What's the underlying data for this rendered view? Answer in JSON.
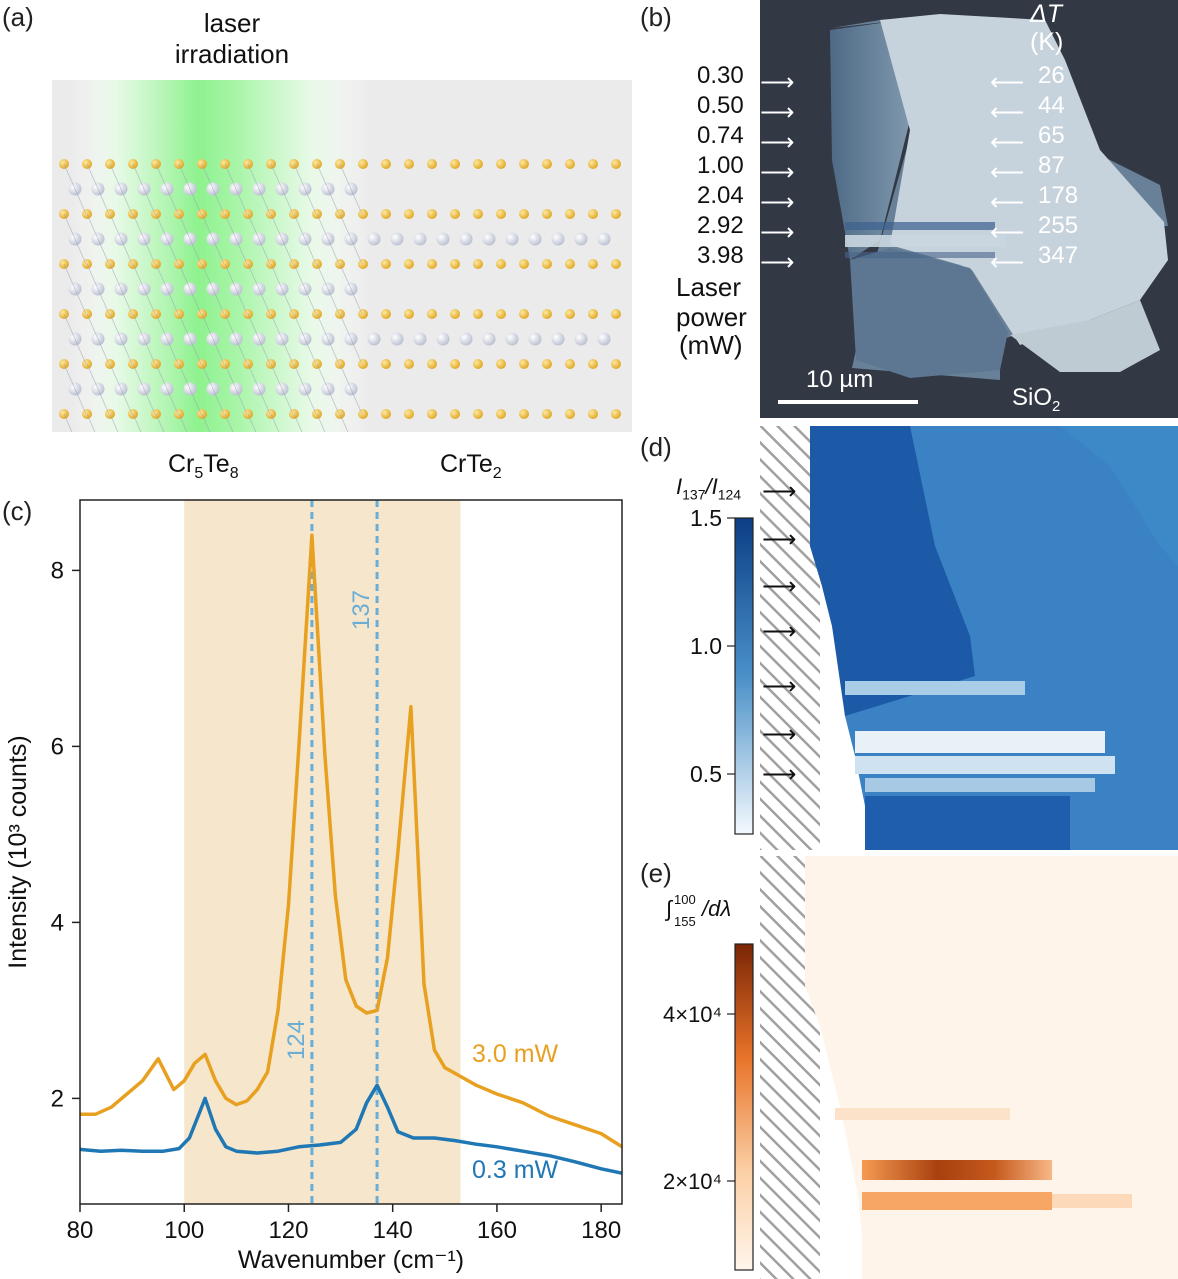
{
  "panel_a": {
    "label": "(a)",
    "laser_title": "laser\nirradiation",
    "phase_left": "Cr5Te8",
    "phase_right": "CrTe2",
    "colors": {
      "laser": "#7df07d",
      "background": "#ebebeb",
      "cr_atom": "#d9dde8",
      "te_atom": "#f0c040"
    }
  },
  "panel_b": {
    "label": "(b)",
    "dt_header": "ΔT",
    "dt_unit": "(K)",
    "powers": [
      "0.30",
      "0.50",
      "0.74",
      "1.00",
      "2.04",
      "2.92",
      "3.98"
    ],
    "delta_t": [
      "26",
      "44",
      "65",
      "87",
      "178",
      "255",
      "347"
    ],
    "power_caption": [
      "Laser",
      "power",
      "(mW)"
    ],
    "scale_bar": "10 µm",
    "substrate": "SiO2"
  },
  "panel_c": {
    "label": "(c)",
    "chart_data": {
      "type": "line",
      "xlabel": "Wavenumber (cm⁻¹)",
      "ylabel": "Intensity (10³ counts)",
      "xlim": [
        80,
        184
      ],
      "ylim": [
        0.8,
        8.8
      ],
      "xticks": [
        80,
        100,
        120,
        140,
        160,
        180
      ],
      "yticks": [
        2,
        4,
        6,
        8
      ],
      "shaded_region": [
        100,
        153
      ],
      "vlines": [
        {
          "x": 124.5,
          "label": "124"
        },
        {
          "x": 137,
          "label": "137"
        }
      ],
      "series": [
        {
          "name": "3.0 mW",
          "color": "#e8a020",
          "x": [
            80,
            83,
            86,
            89,
            92,
            95,
            98,
            100,
            102,
            104,
            106,
            108,
            110,
            112,
            114,
            116,
            118,
            120,
            122,
            124.5,
            127,
            129,
            131,
            133,
            135,
            137,
            139,
            141,
            143.5,
            146,
            148,
            150,
            153,
            156,
            160,
            165,
            170,
            175,
            180,
            184
          ],
          "y": [
            1.82,
            1.82,
            1.9,
            2.05,
            2.2,
            2.45,
            2.1,
            2.2,
            2.4,
            2.5,
            2.2,
            2.0,
            1.93,
            1.97,
            2.1,
            2.3,
            3.0,
            4.2,
            6.0,
            8.4,
            5.9,
            4.3,
            3.35,
            3.05,
            2.97,
            3.0,
            3.6,
            4.8,
            6.45,
            3.3,
            2.55,
            2.35,
            2.25,
            2.15,
            2.05,
            1.95,
            1.8,
            1.7,
            1.6,
            1.45
          ]
        },
        {
          "name": "0.3 mW",
          "color": "#1f77b4",
          "x": [
            80,
            84,
            88,
            92,
            96,
            99,
            101,
            103,
            104,
            106,
            108,
            110,
            114,
            118,
            122,
            126,
            130,
            133,
            135,
            137,
            139,
            141,
            144,
            148,
            152,
            156,
            160,
            165,
            170,
            175,
            180,
            184
          ],
          "y": [
            1.42,
            1.4,
            1.41,
            1.4,
            1.4,
            1.43,
            1.55,
            1.85,
            2.0,
            1.65,
            1.45,
            1.4,
            1.38,
            1.4,
            1.45,
            1.47,
            1.5,
            1.65,
            1.95,
            2.15,
            1.9,
            1.62,
            1.55,
            1.55,
            1.52,
            1.48,
            1.45,
            1.4,
            1.35,
            1.28,
            1.2,
            1.15
          ]
        }
      ]
    }
  },
  "panel_d": {
    "label": "(d)",
    "colorbar_title": "I137/I124",
    "ticks": [
      "1.5",
      "1.0",
      "0.5"
    ]
  },
  "panel_e": {
    "label": "(e)",
    "colorbar_title": "∫/dλ",
    "integral_upper": "100",
    "integral_lower": "155",
    "ticks": [
      "4×10⁴",
      "2×10⁴"
    ]
  }
}
